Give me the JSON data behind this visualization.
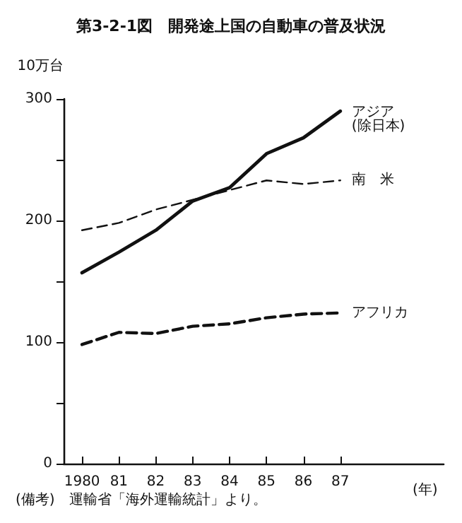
{
  "chart_data": {
    "type": "line",
    "title": "第3-2-1図　開発途上国の自動車の普及状況",
    "ylabel": "10万台",
    "xlabel": "(年)",
    "x": [
      1980,
      1981,
      1982,
      1983,
      1984,
      1985,
      1986,
      1987
    ],
    "series": [
      {
        "name": "アジア\n(除日本)",
        "color": "#111111",
        "line_style": "solid",
        "values": [
          157,
          174,
          192,
          216,
          227,
          255,
          268,
          290
        ]
      },
      {
        "name": "南　米",
        "color": "#111111",
        "line_style": "dashed",
        "values": [
          192,
          198,
          209,
          217,
          225,
          233,
          230,
          233
        ]
      },
      {
        "name": "アフリカ",
        "color": "#111111",
        "line_style": "dashed",
        "values": [
          98,
          108,
          107,
          113,
          115,
          120,
          123,
          124
        ]
      }
    ],
    "xlim": [
      1979.5,
      1989.8
    ],
    "xticks": [
      {
        "value": 1980,
        "label": "1980"
      },
      {
        "value": 1981,
        "label": "81"
      },
      {
        "value": 1982,
        "label": "82"
      },
      {
        "value": 1983,
        "label": "83"
      },
      {
        "value": 1984,
        "label": "84"
      },
      {
        "value": 1985,
        "label": "85"
      },
      {
        "value": 1986,
        "label": "86"
      },
      {
        "value": 1987,
        "label": "87"
      }
    ],
    "ylim": [
      0,
      300
    ],
    "yticks": [
      0,
      {
        "value": 50,
        "label": null
      },
      100,
      {
        "value": 150,
        "label": null
      },
      200,
      {
        "value": 250,
        "label": null
      },
      300
    ],
    "grid": false,
    "legend": false,
    "marker": "none",
    "annotations": [
      "(備考)　運輸省「海外運輸統計」より。"
    ]
  }
}
